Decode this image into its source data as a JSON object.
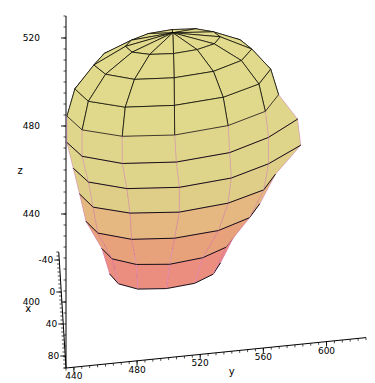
{
  "chart_data": {
    "type": "surface3d",
    "x_label": "x",
    "y_label": "y",
    "z_label": "z",
    "xlim": [
      -50,
      95
    ],
    "ylim": [
      435,
      625
    ],
    "zlim": [
      370,
      530
    ],
    "xticks": [
      -40,
      0,
      40,
      80
    ],
    "yticks": [
      440,
      480,
      520,
      560,
      600
    ],
    "zticks": [
      400,
      440,
      480,
      520
    ],
    "surface": {
      "rings": [
        {
          "z": 385,
          "points": [
            [
              50,
              500
            ],
            [
              47,
              518
            ],
            [
              38,
              530
            ],
            [
              25,
              535
            ],
            [
              13,
              530
            ],
            [
              3,
              518
            ],
            [
              0,
              500
            ],
            [
              3,
              482
            ],
            [
              13,
              470
            ],
            [
              25,
              465
            ],
            [
              38,
              470
            ],
            [
              47,
              482
            ]
          ]
        },
        {
          "z": 397,
          "points": [
            [
              53,
              502
            ],
            [
              49,
              523
            ],
            [
              39,
              538
            ],
            [
              25,
              544
            ],
            [
              11,
              538
            ],
            [
              1,
              523
            ],
            [
              -3,
              502
            ],
            [
              1,
              481
            ],
            [
              11,
              466
            ],
            [
              25,
              460
            ],
            [
              39,
              466
            ],
            [
              49,
              481
            ]
          ]
        },
        {
          "z": 409,
          "points": [
            [
              54,
              505
            ],
            [
              50,
              533
            ],
            [
              38,
              553
            ],
            [
              22,
              560
            ],
            [
              6,
              553
            ],
            [
              -6,
              533
            ],
            [
              -10,
              505
            ],
            [
              -6,
              478
            ],
            [
              6,
              457
            ],
            [
              22,
              450
            ],
            [
              38,
              457
            ],
            [
              50,
              478
            ]
          ]
        },
        {
          "z": 421,
          "points": [
            [
              55,
              508
            ],
            [
              50,
              539
            ],
            [
              38,
              562
            ],
            [
              20,
              570
            ],
            [
              3,
              562
            ],
            [
              -10,
              539
            ],
            [
              -15,
              508
            ],
            [
              -10,
              477
            ],
            [
              3,
              454
            ],
            [
              20,
              446
            ],
            [
              38,
              454
            ],
            [
              50,
              477
            ]
          ]
        },
        {
          "z": 433,
          "points": [
            [
              57,
              508
            ],
            [
              52,
              541
            ],
            [
              39,
              565
            ],
            [
              20,
              586
            ],
            [
              2,
              565
            ],
            [
              -12,
              541
            ],
            [
              -17,
              508
            ],
            [
              -12,
              475
            ],
            [
              2,
              451
            ],
            [
              20,
              442
            ],
            [
              39,
              451
            ],
            [
              52,
              475
            ]
          ]
        },
        {
          "z": 445,
          "points": [
            [
              58,
              506
            ],
            [
              53,
              540
            ],
            [
              39,
              565
            ],
            [
              20,
              584
            ],
            [
              1,
              565
            ],
            [
              -13,
              540
            ],
            [
              -18,
              506
            ],
            [
              -13,
              472
            ],
            [
              1,
              447
            ],
            [
              20,
              438
            ],
            [
              39,
              447
            ],
            [
              53,
              472
            ]
          ]
        },
        {
          "z": 457,
          "points": [
            [
              57,
              505
            ],
            [
              52,
              539
            ],
            [
              39,
              563
            ],
            [
              20,
              572
            ],
            [
              2,
              563
            ],
            [
              -12,
              539
            ],
            [
              -17,
              505
            ],
            [
              -12,
              472
            ],
            [
              2,
              447
            ],
            [
              20,
              438
            ],
            [
              39,
              447
            ],
            [
              52,
              472
            ]
          ]
        },
        {
          "z": 469,
          "points": [
            [
              53,
              505
            ],
            [
              49,
              536
            ],
            [
              37,
              559
            ],
            [
              20,
              567
            ],
            [
              4,
              559
            ],
            [
              -9,
              536
            ],
            [
              -13,
              505
            ],
            [
              -9,
              474
            ],
            [
              4,
              451
            ],
            [
              20,
              443
            ],
            [
              37,
              451
            ],
            [
              49,
              474
            ]
          ]
        },
        {
          "z": 479,
          "points": [
            [
              46,
              505
            ],
            [
              43,
              530
            ],
            [
              33,
              548
            ],
            [
              20,
              555
            ],
            [
              7,
              548
            ],
            [
              -3,
              530
            ],
            [
              -6,
              505
            ],
            [
              -3,
              480
            ],
            [
              7,
              462
            ],
            [
              20,
              455
            ],
            [
              33,
              462
            ],
            [
              43,
              480
            ]
          ]
        },
        {
          "z": 486,
          "points": [
            [
              35,
              505
            ],
            [
              33,
              520
            ],
            [
              28,
              531
            ],
            [
              20,
              535
            ],
            [
              13,
              531
            ],
            [
              7,
              520
            ],
            [
              5,
              505
            ],
            [
              7,
              490
            ],
            [
              13,
              479
            ],
            [
              20,
              475
            ],
            [
              28,
              479
            ],
            [
              33,
              490
            ]
          ]
        }
      ],
      "apex": [
        20,
        505,
        490
      ]
    }
  }
}
